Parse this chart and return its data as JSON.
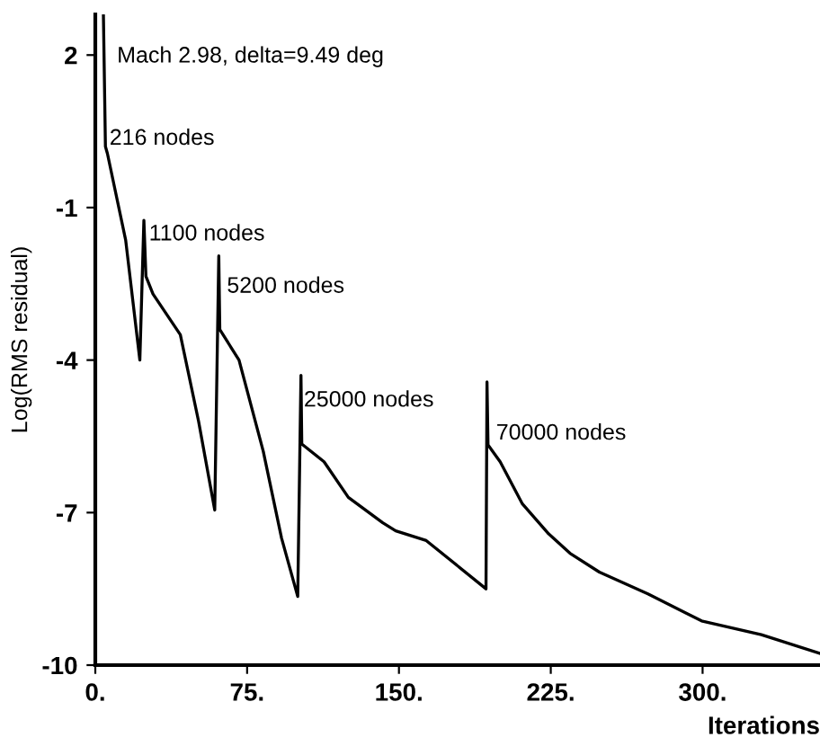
{
  "chart_data": {
    "type": "line",
    "xlabel": "Iterations",
    "ylabel": "Log(RMS residual)",
    "x": [
      4,
      5,
      6,
      15,
      22,
      24,
      25,
      28.5,
      42,
      51,
      59,
      61,
      61.5,
      71,
      83,
      92,
      100,
      101.6,
      102,
      113,
      125,
      142,
      148.4,
      163.5,
      193,
      193.5,
      194,
      200,
      211,
      224,
      234.5,
      249,
      273,
      299.5,
      329,
      358
    ],
    "series": [
      {
        "color": "#000000",
        "values": [
          2.8,
          0.2,
          0.06,
          -1.64,
          -4.0,
          -1.25,
          -2.35,
          -2.7,
          -3.5,
          -5.2,
          -6.95,
          -1.95,
          -3.4,
          -4.0,
          -5.8,
          -7.5,
          -8.65,
          -4.3,
          -5.65,
          -6.0,
          -6.7,
          -7.2,
          -7.36,
          -7.55,
          -8.5,
          -4.43,
          -5.67,
          -6.0,
          -6.83,
          -7.42,
          -7.8,
          -8.17,
          -8.6,
          -9.13,
          -9.4,
          -9.77
        ]
      }
    ],
    "xlim": [
      0,
      358
    ],
    "ylim": [
      -10,
      2.8
    ],
    "xticks": [
      {
        "value": 0,
        "label": "0."
      },
      {
        "value": 75,
        "label": "75."
      },
      {
        "value": 150,
        "label": "150."
      },
      {
        "value": 225,
        "label": "225."
      },
      {
        "value": 300,
        "label": "300."
      }
    ],
    "yticks": [
      2,
      -1,
      -4,
      -7,
      -10
    ],
    "annotations": [
      "Mach 2.98, delta=9.49 deg",
      {
        "text": "216 nodes",
        "x": 7,
        "y": 0.35
      },
      {
        "text": "1100 nodes",
        "x": 26.5,
        "y": -1.53
      },
      {
        "text": "5200 nodes",
        "x": 65,
        "y": -2.56
      },
      {
        "text": "25000 nodes",
        "x": 103,
        "y": -4.8
      },
      {
        "text": "70000 nodes",
        "x": 198,
        "y": -5.45
      }
    ],
    "grid": false,
    "legend": false,
    "marker": "none",
    "line_style": "solid"
  }
}
